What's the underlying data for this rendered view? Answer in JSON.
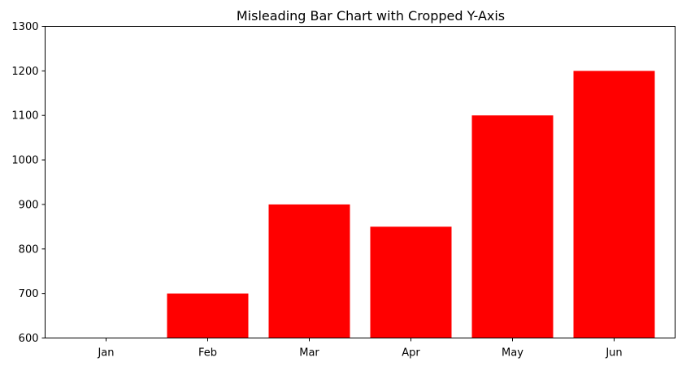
{
  "chart_data": {
    "type": "bar",
    "title": "Misleading Bar Chart with Cropped Y-Axis",
    "xlabel": "",
    "ylabel": "",
    "categories": [
      "Jan",
      "Feb",
      "Mar",
      "Apr",
      "May",
      "Jun"
    ],
    "values": [
      600,
      700,
      900,
      850,
      1100,
      1200
    ],
    "ylim": [
      600,
      1300
    ],
    "yticks": [
      600,
      700,
      800,
      900,
      1000,
      1100,
      1200,
      1300
    ],
    "bar_color": "#ff0000",
    "grid": false,
    "legend": "none"
  }
}
